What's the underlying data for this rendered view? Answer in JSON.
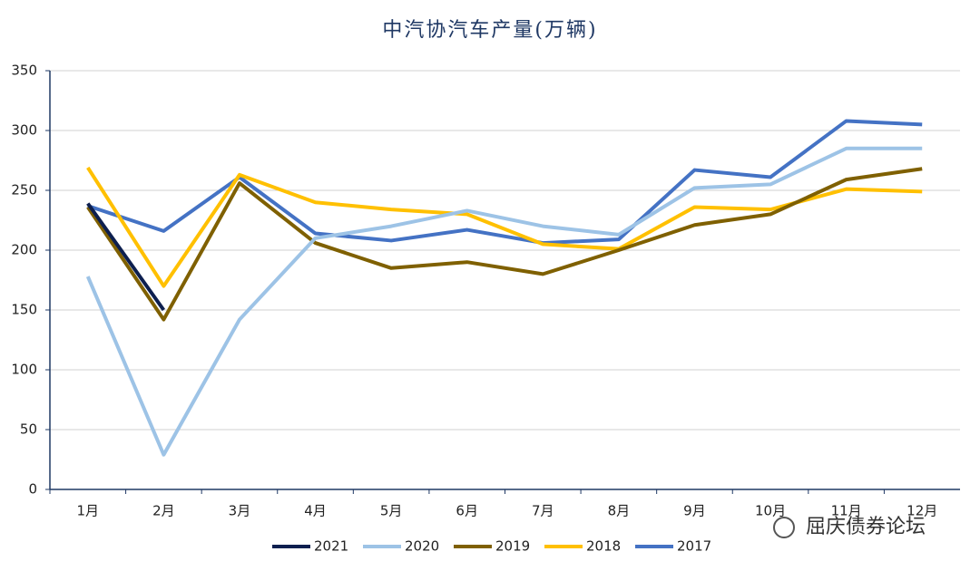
{
  "chart_data": {
    "type": "line",
    "title": "中汽协汽车产量(万辆)",
    "categories": [
      "1月",
      "2月",
      "3月",
      "4月",
      "5月",
      "6月",
      "7月",
      "8月",
      "9月",
      "10月",
      "11月",
      "12月"
    ],
    "series": [
      {
        "name": "2021",
        "color": "#0d1f4f",
        "values": [
          239,
          150,
          null,
          null,
          null,
          null,
          null,
          null,
          null,
          null,
          null,
          null
        ]
      },
      {
        "name": "2020",
        "color": "#9dc3e6",
        "values": [
          178,
          29,
          142,
          210,
          220,
          233,
          220,
          213,
          252,
          255,
          285,
          285
        ]
      },
      {
        "name": "2019",
        "color": "#7f6000",
        "values": [
          236,
          142,
          256,
          206,
          185,
          190,
          180,
          200,
          221,
          230,
          259,
          268
        ]
      },
      {
        "name": "2018",
        "color": "#ffc000",
        "values": [
          269,
          170,
          263,
          240,
          234,
          230,
          205,
          201,
          236,
          234,
          251,
          249
        ]
      },
      {
        "name": "2017",
        "color": "#4472c4",
        "values": [
          237,
          216,
          261,
          214,
          208,
          217,
          206,
          209,
          267,
          261,
          308,
          305
        ]
      }
    ],
    "ylim": [
      0,
      350
    ],
    "yticks": [
      0,
      50,
      100,
      150,
      200,
      250,
      300,
      350
    ],
    "grid": true,
    "legend": "bottom",
    "watermark": "屈庆债券论坛"
  }
}
